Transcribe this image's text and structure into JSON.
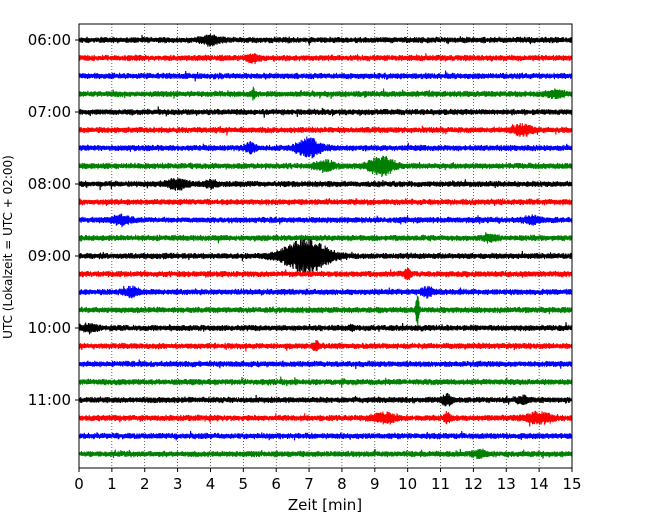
{
  "chart_data": {
    "type": "line",
    "chart_kind": "seismic helicorder (drum plot)",
    "xlabel": "Zeit  [min]",
    "ylabel": "UTC (Lokalzeit = UTC + 02:00)",
    "xlim": [
      0,
      15
    ],
    "x_ticks": [
      0,
      1,
      2,
      3,
      4,
      5,
      6,
      7,
      8,
      9,
      10,
      11,
      12,
      13,
      14,
      15
    ],
    "x_tick_labels": [
      "0",
      "1",
      "2",
      "3",
      "4",
      "5",
      "6",
      "7",
      "8",
      "9",
      "10",
      "11",
      "12",
      "13",
      "14",
      "15"
    ],
    "y_tick_labels": [
      "06:00",
      "07:00",
      "08:00",
      "09:00",
      "10:00",
      "11:00"
    ],
    "y_tick_rows": [
      0,
      4,
      8,
      12,
      16,
      20
    ],
    "start_time": "06:00",
    "minutes_per_trace": 15,
    "vertical_grid": "dotted",
    "trace_color_cycle": [
      "#000000",
      "#ff0000",
      "#0000ff",
      "#008000"
    ],
    "traces": [
      {
        "label": "06:00",
        "color": "#000000",
        "events": [
          {
            "t": 4.0,
            "amp": 0.45,
            "dur": 0.5
          }
        ]
      },
      {
        "label": "06:15",
        "color": "#ff0000",
        "events": [
          {
            "t": 5.3,
            "amp": 0.35,
            "dur": 0.4
          }
        ]
      },
      {
        "label": "06:30",
        "color": "#0000ff",
        "events": []
      },
      {
        "label": "06:45",
        "color": "#008000",
        "events": [
          {
            "t": 5.3,
            "amp": 0.5,
            "dur": 0.1
          },
          {
            "t": 14.5,
            "amp": 0.3,
            "dur": 0.6
          }
        ]
      },
      {
        "label": "07:00",
        "color": "#000000",
        "events": []
      },
      {
        "label": "07:15",
        "color": "#ff0000",
        "events": [
          {
            "t": 13.5,
            "amp": 0.5,
            "dur": 0.6
          }
        ]
      },
      {
        "label": "07:30",
        "color": "#0000ff",
        "events": [
          {
            "t": 5.2,
            "amp": 0.5,
            "dur": 0.3
          },
          {
            "t": 7.0,
            "amp": 0.95,
            "dur": 0.7
          }
        ]
      },
      {
        "label": "07:45",
        "color": "#008000",
        "events": [
          {
            "t": 7.5,
            "amp": 0.45,
            "dur": 0.6
          },
          {
            "t": 9.2,
            "amp": 0.9,
            "dur": 0.8
          }
        ]
      },
      {
        "label": "08:00",
        "color": "#000000",
        "events": [
          {
            "t": 3.0,
            "amp": 0.5,
            "dur": 0.6
          },
          {
            "t": 4.0,
            "amp": 0.3,
            "dur": 0.4
          }
        ]
      },
      {
        "label": "08:15",
        "color": "#ff0000",
        "events": []
      },
      {
        "label": "08:30",
        "color": "#0000ff",
        "events": [
          {
            "t": 1.3,
            "amp": 0.4,
            "dur": 0.6
          },
          {
            "t": 13.8,
            "amp": 0.35,
            "dur": 0.5
          }
        ]
      },
      {
        "label": "08:45",
        "color": "#008000",
        "events": [
          {
            "t": 12.5,
            "amp": 0.3,
            "dur": 0.4
          }
        ]
      },
      {
        "label": "09:00",
        "color": "#000000",
        "events": [
          {
            "t": 6.9,
            "amp": 1.7,
            "dur": 1.4
          }
        ]
      },
      {
        "label": "09:15",
        "color": "#ff0000",
        "events": [
          {
            "t": 10.0,
            "amp": 0.45,
            "dur": 0.2
          }
        ]
      },
      {
        "label": "09:30",
        "color": "#0000ff",
        "events": [
          {
            "t": 1.6,
            "amp": 0.45,
            "dur": 0.4
          },
          {
            "t": 10.6,
            "amp": 0.4,
            "dur": 0.4
          }
        ]
      },
      {
        "label": "09:45",
        "color": "#008000",
        "events": [
          {
            "t": 10.3,
            "amp": 2.0,
            "dur": 0.1
          }
        ]
      },
      {
        "label": "10:00",
        "color": "#000000",
        "events": [
          {
            "t": 0.3,
            "amp": 0.35,
            "dur": 0.5
          },
          {
            "t": 8.3,
            "amp": 0.3,
            "dur": 0.1
          }
        ]
      },
      {
        "label": "10:15",
        "color": "#ff0000",
        "events": [
          {
            "t": 7.2,
            "amp": 0.4,
            "dur": 0.2
          }
        ]
      },
      {
        "label": "10:30",
        "color": "#0000ff",
        "events": []
      },
      {
        "label": "10:45",
        "color": "#008000",
        "events": []
      },
      {
        "label": "11:00",
        "color": "#000000",
        "events": [
          {
            "t": 11.2,
            "amp": 0.6,
            "dur": 0.3
          },
          {
            "t": 13.5,
            "amp": 0.3,
            "dur": 0.4
          }
        ]
      },
      {
        "label": "11:15",
        "color": "#ff0000",
        "events": [
          {
            "t": 9.3,
            "amp": 0.45,
            "dur": 0.7
          },
          {
            "t": 11.2,
            "amp": 0.45,
            "dur": 0.2
          },
          {
            "t": 14.0,
            "amp": 0.5,
            "dur": 0.8
          }
        ]
      },
      {
        "label": "11:30",
        "color": "#0000ff",
        "events": []
      },
      {
        "label": "11:45",
        "color": "#008000",
        "events": [
          {
            "t": 12.2,
            "amp": 0.3,
            "dur": 0.4
          }
        ]
      }
    ]
  }
}
